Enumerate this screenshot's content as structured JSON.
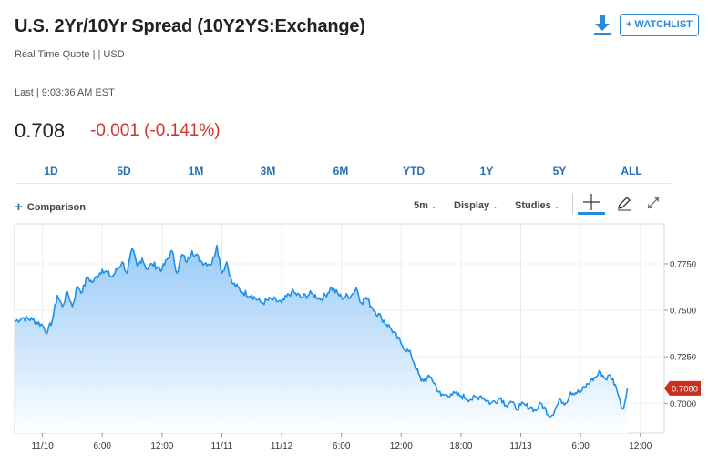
{
  "header": {
    "title": "U.S. 2Yr/10Yr Spread (10Y2YS:Exchange)",
    "subtitle": "Real Time Quote | | USD",
    "last": "Last | 9:03:36 AM EST",
    "price": "0.708",
    "change": "-0.001 (-0.141%)",
    "watchlist_label": "+ WATCHLIST"
  },
  "ranges": [
    "1D",
    "5D",
    "1M",
    "3M",
    "6M",
    "YTD",
    "1Y",
    "5Y",
    "ALL"
  ],
  "toolbar": {
    "comparison_label": "Comparison",
    "interval": "5m",
    "display_label": "Display",
    "studies_label": "Studies"
  },
  "colors": {
    "line": "#1e90e8",
    "fill_top": "#8fc6f7",
    "fill_bottom": "#ffffff",
    "down": "#d0342c",
    "label_bg": "#c8311f",
    "link": "#2b6eb3"
  },
  "chart_data": {
    "type": "area",
    "ylim": [
      0.684,
      0.7965
    ],
    "y_ticks": [
      "0.7750",
      "0.7500",
      "0.7250",
      "0.7000"
    ],
    "y_tick_values": [
      0.775,
      0.75,
      0.725,
      0.7
    ],
    "x_ticks": [
      "11/10",
      "6:00",
      "12:00",
      "11/11",
      "11/12",
      "6:00",
      "12:00",
      "18:00",
      "11/13",
      "6:00",
      "12:00"
    ],
    "x_tick_values": [
      6,
      12,
      18,
      24,
      30,
      36,
      42,
      48,
      54,
      60,
      66
    ],
    "x_range": [
      3.2,
      68.4
    ],
    "last_value_label": "0.7080",
    "last_value": 0.708,
    "x": [
      3.2,
      4.0,
      5.0,
      6.0,
      6.5,
      7.0,
      7.5,
      8.0,
      8.5,
      9.0,
      9.5,
      10.0,
      10.5,
      11.0,
      12.0,
      13.0,
      14.0,
      14.5,
      15.0,
      15.5,
      16.0,
      16.5,
      17.0,
      18.0,
      19.0,
      19.5,
      20.0,
      20.5,
      21.0,
      22.0,
      23.0,
      23.5,
      24.0,
      24.5,
      25.0,
      26.0,
      27.0,
      28.0,
      29.0,
      30.0,
      31.0,
      32.0,
      33.0,
      34.0,
      35.0,
      36.0,
      37.0,
      37.5,
      38.0,
      38.5,
      39.0,
      40.0,
      41.0,
      42.0,
      43.0,
      44.0,
      45.0,
      46.0,
      47.0,
      48.0,
      49.0,
      50.0,
      51.0,
      52.0,
      52.5,
      53.0,
      53.5,
      54.0,
      55.0,
      55.5,
      56.0,
      57.0,
      58.0,
      58.5,
      59.0,
      60.0,
      61.0,
      61.5,
      62.0,
      62.5,
      63.0,
      63.5,
      63.8,
      64.0,
      64.3,
      64.7
    ],
    "values": [
      0.744,
      0.746,
      0.745,
      0.742,
      0.738,
      0.745,
      0.758,
      0.752,
      0.76,
      0.752,
      0.763,
      0.76,
      0.768,
      0.765,
      0.772,
      0.768,
      0.776,
      0.77,
      0.783,
      0.774,
      0.778,
      0.772,
      0.775,
      0.772,
      0.782,
      0.77,
      0.78,
      0.776,
      0.782,
      0.776,
      0.775,
      0.785,
      0.77,
      0.776,
      0.765,
      0.76,
      0.758,
      0.754,
      0.756,
      0.754,
      0.76,
      0.757,
      0.759,
      0.756,
      0.762,
      0.757,
      0.758,
      0.762,
      0.754,
      0.757,
      0.752,
      0.746,
      0.74,
      0.732,
      0.726,
      0.712,
      0.714,
      0.704,
      0.705,
      0.704,
      0.702,
      0.704,
      0.7,
      0.703,
      0.699,
      0.701,
      0.697,
      0.699,
      0.698,
      0.696,
      0.7,
      0.693,
      0.702,
      0.7,
      0.706,
      0.706,
      0.712,
      0.714,
      0.717,
      0.713,
      0.715,
      0.71,
      0.704,
      0.7,
      0.697,
      0.708
    ]
  }
}
